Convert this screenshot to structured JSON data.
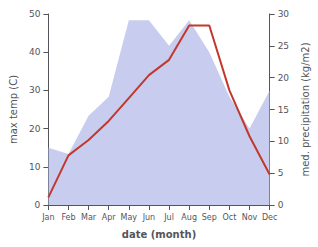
{
  "chart_data": {
    "type": "line",
    "categories": [
      "Jan",
      "Feb",
      "Mar",
      "Apr",
      "May",
      "Jun",
      "Jul",
      "Aug",
      "Sep",
      "Oct",
      "Nov",
      "Dec"
    ],
    "xlabel": "date (month)",
    "ylabel": "max temp (C)",
    "y2label": "med. precipitation (kg/m2)",
    "ylim": [
      0,
      50
    ],
    "yticks": [
      0,
      10,
      20,
      30,
      40,
      50
    ],
    "y2lim": [
      0,
      30
    ],
    "y2ticks": [
      0,
      5,
      10,
      15,
      20,
      25,
      30
    ],
    "grid": false,
    "series": [
      {
        "type": "area",
        "axis": "y2",
        "color": "#b0b8e8",
        "values": [
          9,
          8,
          14,
          17,
          29,
          29,
          25,
          29,
          24,
          17,
          12,
          18
        ]
      },
      {
        "type": "line",
        "color": "#c0392b",
        "values": [
          2,
          13,
          17,
          22,
          28,
          34,
          38,
          47,
          47,
          30,
          18,
          8
        ]
      }
    ]
  }
}
